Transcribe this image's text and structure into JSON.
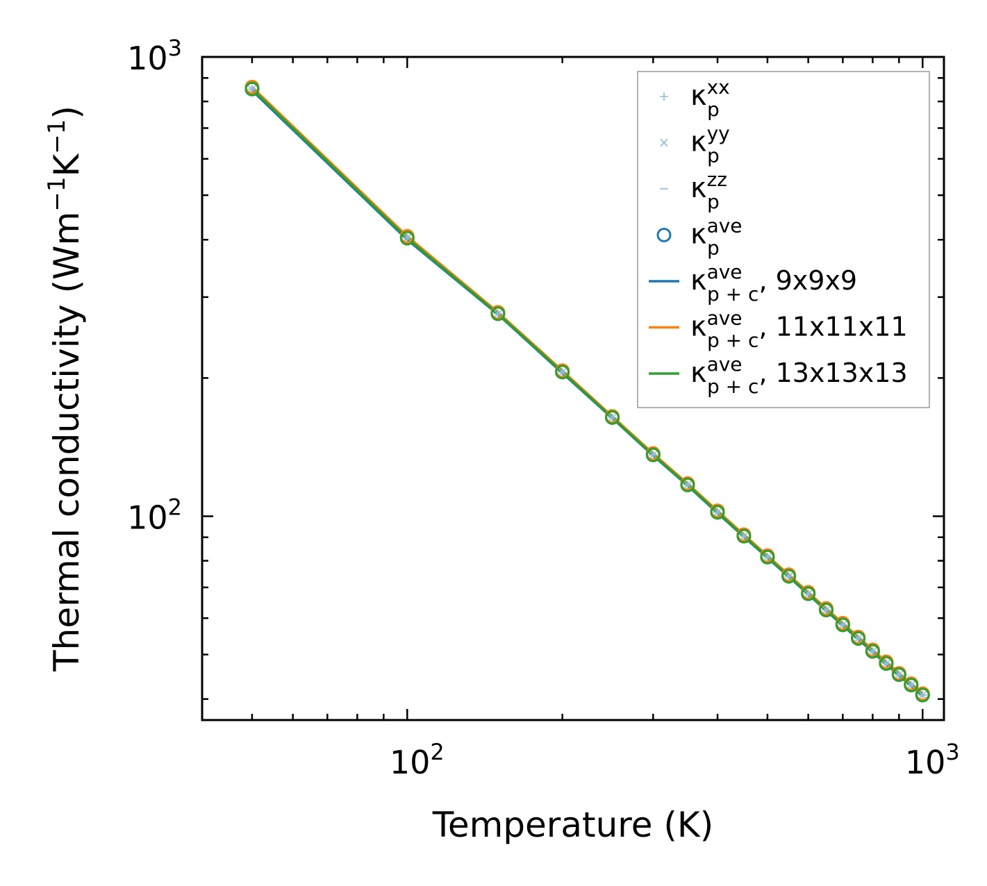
{
  "chart_data": {
    "type": "line",
    "x_scale": "log",
    "y_scale": "log",
    "xlabel": {
      "base": "Temperature (K)"
    },
    "ylabel": {
      "prefix": "Thermal conductivity (Wm",
      "sup1": "−1",
      "mid": "K",
      "sup2": "−1",
      "suffix": ")"
    },
    "xlim": [
      40,
      1100
    ],
    "ylim": [
      36,
      1000
    ],
    "x_major_ticks": [
      {
        "value": 100,
        "base": "10",
        "exp": "2"
      },
      {
        "value": 1000,
        "base": "10",
        "exp": "3"
      }
    ],
    "y_major_ticks": [
      {
        "value": 100,
        "base": "10",
        "exp": "2"
      },
      {
        "value": 1000,
        "base": "10",
        "exp": "3"
      }
    ],
    "x": [
      50,
      100,
      150,
      200,
      250,
      300,
      350,
      400,
      450,
      500,
      550,
      600,
      650,
      700,
      750,
      800,
      850,
      900,
      950,
      1000
    ],
    "series": [
      {
        "name": "κp xx",
        "kind": "marker",
        "marker": "plus",
        "color": "#8fbbdc",
        "values": [
          851,
          404,
          276,
          206,
          164,
          136,
          117,
          102,
          90.5,
          81.5,
          74,
          67.8,
          62.5,
          58,
          54.2,
          50.8,
          47.8,
          45.2,
          42.9,
          40.8
        ]
      },
      {
        "name": "κp yy",
        "kind": "marker",
        "marker": "cross",
        "color": "#8fbbdc",
        "values": [
          851,
          404,
          276,
          206,
          164,
          136,
          117,
          102,
          90.5,
          81.5,
          74,
          67.8,
          62.5,
          58,
          54.2,
          50.8,
          47.8,
          45.2,
          42.9,
          40.8
        ]
      },
      {
        "name": "κp zz",
        "kind": "marker",
        "marker": "dash",
        "color": "#8fbbdc",
        "values": [
          851,
          404,
          276,
          206,
          164,
          136,
          117,
          102,
          90.5,
          81.5,
          74,
          67.8,
          62.5,
          58,
          54.2,
          50.8,
          47.8,
          45.2,
          42.9,
          40.8
        ]
      },
      {
        "name": "κp ave",
        "kind": "marker",
        "marker": "circle",
        "color": "#1f77b4",
        "values": [
          851,
          404,
          276,
          206,
          164,
          136,
          117,
          102,
          90.5,
          81.5,
          74,
          67.8,
          62.5,
          58,
          54.2,
          50.8,
          47.8,
          45.2,
          42.9,
          40.8
        ]
      },
      {
        "name": "κp+c ave, 9x9x9",
        "kind": "line",
        "color": "#1f77b4",
        "values": [
          845,
          400,
          275,
          205,
          163.5,
          135.5,
          116.6,
          101.6,
          90.2,
          81.2,
          73.8,
          67.6,
          62.3,
          57.8,
          54,
          50.6,
          47.6,
          45,
          42.7,
          40.6
        ]
      },
      {
        "name": "κp+c ave, 11x11x11",
        "kind": "line",
        "color": "#ff7f0e",
        "values": [
          860,
          407,
          278,
          207.5,
          165,
          137,
          117.8,
          102.8,
          91.2,
          82.1,
          74.6,
          68.3,
          63,
          58.5,
          54.6,
          51.2,
          48.2,
          45.5,
          43.2,
          41.1
        ]
      },
      {
        "name": "κp+c ave, 13x13x13",
        "kind": "line",
        "color": "#2ca02c",
        "values": [
          852,
          403,
          276,
          206,
          164,
          136,
          117,
          102,
          90.5,
          81.5,
          74,
          67.8,
          62.5,
          58,
          54.2,
          50.8,
          47.8,
          45.2,
          42.9,
          40.8
        ]
      }
    ],
    "overlay_circles": [
      {
        "color": "#ff7f0e",
        "series_index": 5
      },
      {
        "color": "#2ca02c",
        "series_index": 6
      }
    ],
    "legend": {
      "placement": "top-right",
      "entries": [
        {
          "sym": "+",
          "color": "#8fbbdc",
          "base": "κ",
          "sup": "xx",
          "sub": "p",
          "tail": ""
        },
        {
          "sym": "×",
          "color": "#8fbbdc",
          "base": "κ",
          "sup": "yy",
          "sub": "p",
          "tail": ""
        },
        {
          "sym": "−",
          "color": "#8fbbdc",
          "base": "κ",
          "sup": "zz",
          "sub": "p",
          "tail": ""
        },
        {
          "sym": "o",
          "color": "#1f77b4",
          "base": "κ",
          "sup": "ave",
          "sub": "p",
          "tail": ""
        },
        {
          "sym": "line",
          "color": "#1f77b4",
          "base": "κ",
          "sup": "ave",
          "sub": "p + c",
          "tail": ", 9x9x9"
        },
        {
          "sym": "line",
          "color": "#ff7f0e",
          "base": "κ",
          "sup": "ave",
          "sub": "p + c",
          "tail": ", 11x11x11"
        },
        {
          "sym": "line",
          "color": "#2ca02c",
          "base": "κ",
          "sup": "ave",
          "sub": "p + c",
          "tail": ", 13x13x13"
        }
      ]
    }
  }
}
